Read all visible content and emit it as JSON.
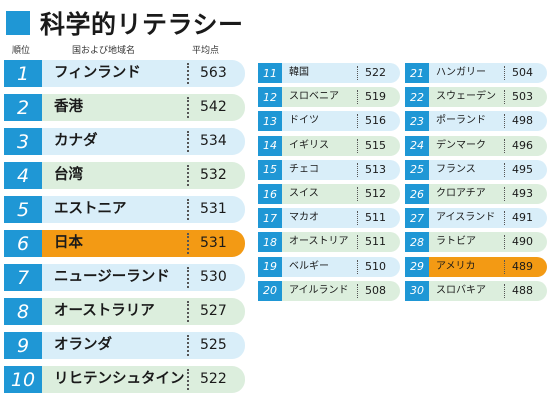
{
  "title": "科学的リテラシー",
  "headers": {
    "rank": "順位",
    "country": "国および地域名",
    "score": "平均点"
  },
  "colors": {
    "accent": "#1f97d5",
    "row_blue": "#d9eef9",
    "row_green": "#dceedd",
    "highlight": "#f39a14"
  },
  "top10": [
    {
      "rank": "1",
      "name": "フィンランド",
      "score": "563",
      "bg": "blue"
    },
    {
      "rank": "2",
      "name": "香港",
      "score": "542",
      "bg": "green"
    },
    {
      "rank": "3",
      "name": "カナダ",
      "score": "534",
      "bg": "blue"
    },
    {
      "rank": "4",
      "name": "台湾",
      "score": "532",
      "bg": "green"
    },
    {
      "rank": "5",
      "name": "エストニア",
      "score": "531",
      "bg": "blue"
    },
    {
      "rank": "6",
      "name": "日本",
      "score": "531",
      "bg": "hl"
    },
    {
      "rank": "7",
      "name": "ニュージーランド",
      "score": "530",
      "bg": "blue"
    },
    {
      "rank": "8",
      "name": "オーストラリア",
      "score": "527",
      "bg": "green"
    },
    {
      "rank": "9",
      "name": "オランダ",
      "score": "525",
      "bg": "blue"
    },
    {
      "rank": "10",
      "name": "リヒテンシュタイン",
      "score": "522",
      "bg": "green"
    }
  ],
  "ranks11_20": [
    {
      "rank": "11",
      "name": "韓国",
      "score": "522",
      "bg": "blue"
    },
    {
      "rank": "12",
      "name": "スロベニア",
      "score": "519",
      "bg": "green"
    },
    {
      "rank": "13",
      "name": "ドイツ",
      "score": "516",
      "bg": "blue"
    },
    {
      "rank": "14",
      "name": "イギリス",
      "score": "515",
      "bg": "green"
    },
    {
      "rank": "15",
      "name": "チェコ",
      "score": "513",
      "bg": "blue"
    },
    {
      "rank": "16",
      "name": "スイス",
      "score": "512",
      "bg": "green"
    },
    {
      "rank": "17",
      "name": "マカオ",
      "score": "511",
      "bg": "blue"
    },
    {
      "rank": "18",
      "name": "オーストリア",
      "score": "511",
      "bg": "green"
    },
    {
      "rank": "19",
      "name": "ベルギー",
      "score": "510",
      "bg": "blue"
    },
    {
      "rank": "20",
      "name": "アイルランド",
      "score": "508",
      "bg": "green"
    }
  ],
  "ranks21_30": [
    {
      "rank": "21",
      "name": "ハンガリー",
      "score": "504",
      "bg": "blue"
    },
    {
      "rank": "22",
      "name": "スウェーデン",
      "score": "503",
      "bg": "green"
    },
    {
      "rank": "23",
      "name": "ポーランド",
      "score": "498",
      "bg": "blue"
    },
    {
      "rank": "24",
      "name": "デンマーク",
      "score": "496",
      "bg": "green"
    },
    {
      "rank": "25",
      "name": "フランス",
      "score": "495",
      "bg": "blue"
    },
    {
      "rank": "26",
      "name": "クロアチア",
      "score": "493",
      "bg": "green"
    },
    {
      "rank": "27",
      "name": "アイスランド",
      "score": "491",
      "bg": "blue"
    },
    {
      "rank": "28",
      "name": "ラトビア",
      "score": "490",
      "bg": "green"
    },
    {
      "rank": "29",
      "name": "アメリカ",
      "score": "489",
      "bg": "hl"
    },
    {
      "rank": "30",
      "name": "スロバキア",
      "score": "488",
      "bg": "green"
    }
  ]
}
